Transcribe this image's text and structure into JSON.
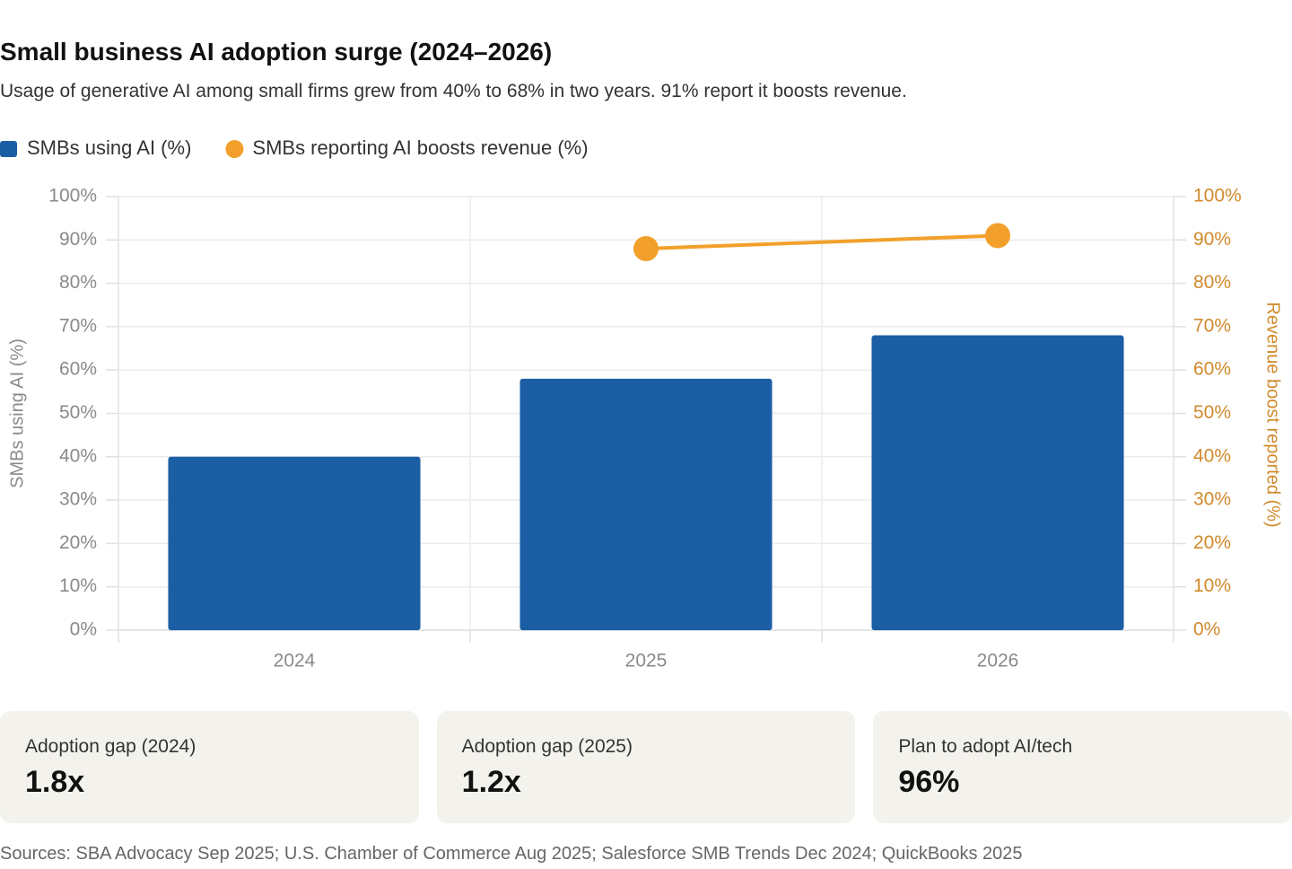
{
  "chart_data": {
    "type": "bar",
    "title": "Small business AI adoption surge (2024–2026)",
    "subtitle": "Usage of generative AI among small firms grew from 40% to 68% in two years. 91% report it boosts revenue.",
    "categories": [
      "2024",
      "2025",
      "2026"
    ],
    "series": [
      {
        "name": "SMBs using AI (%)",
        "color": "#1b5ea3",
        "values": [
          40,
          58,
          68
        ]
      },
      {
        "name": "SMBs reporting AI boosts revenue (%)",
        "color": "#f2a02b",
        "type": "line",
        "axis": "y2",
        "values": [
          null,
          88,
          91
        ]
      }
    ],
    "ylabel": "SMBs using AI (%)",
    "y2label": "Revenue boost reported (%)",
    "ylim": [
      0,
      100
    ],
    "yticks": [
      {
        "value": 0,
        "label": "0%"
      },
      {
        "value": 10,
        "label": "10%"
      },
      {
        "value": 20,
        "label": "20%"
      },
      {
        "value": 30,
        "label": "30%"
      },
      {
        "value": 40,
        "label": "40%"
      },
      {
        "value": 50,
        "label": "50%"
      },
      {
        "value": 60,
        "label": "60%"
      },
      {
        "value": 70,
        "label": "70%"
      },
      {
        "value": 80,
        "label": "80%"
      },
      {
        "value": 90,
        "label": "90%"
      },
      {
        "value": 100,
        "label": "100%"
      }
    ],
    "y2lim": [
      0,
      100
    ],
    "y2ticks": [
      {
        "value": 0,
        "label": "0%"
      },
      {
        "value": 10,
        "label": "10%"
      },
      {
        "value": 20,
        "label": "20%"
      },
      {
        "value": 30,
        "label": "30%"
      },
      {
        "value": 40,
        "label": "40%"
      },
      {
        "value": 50,
        "label": "50%"
      },
      {
        "value": 60,
        "label": "60%"
      },
      {
        "value": 70,
        "label": "70%"
      },
      {
        "value": 80,
        "label": "80%"
      },
      {
        "value": 90,
        "label": "90%"
      },
      {
        "value": 100,
        "label": "100%"
      }
    ],
    "y2color": "#d18a2c",
    "grid": true,
    "legend": "top-left"
  },
  "cards": [
    {
      "label": "Adoption gap (2024)",
      "value": "1.8x"
    },
    {
      "label": "Adoption gap (2025)",
      "value": "1.2x"
    },
    {
      "label": "Plan to adopt AI/tech",
      "value": "96%"
    }
  ],
  "source": "Sources: SBA Advocacy Sep 2025; U.S. Chamber of Commerce Aug 2025; Salesforce SMB Trends Dec 2024; QuickBooks 2025"
}
